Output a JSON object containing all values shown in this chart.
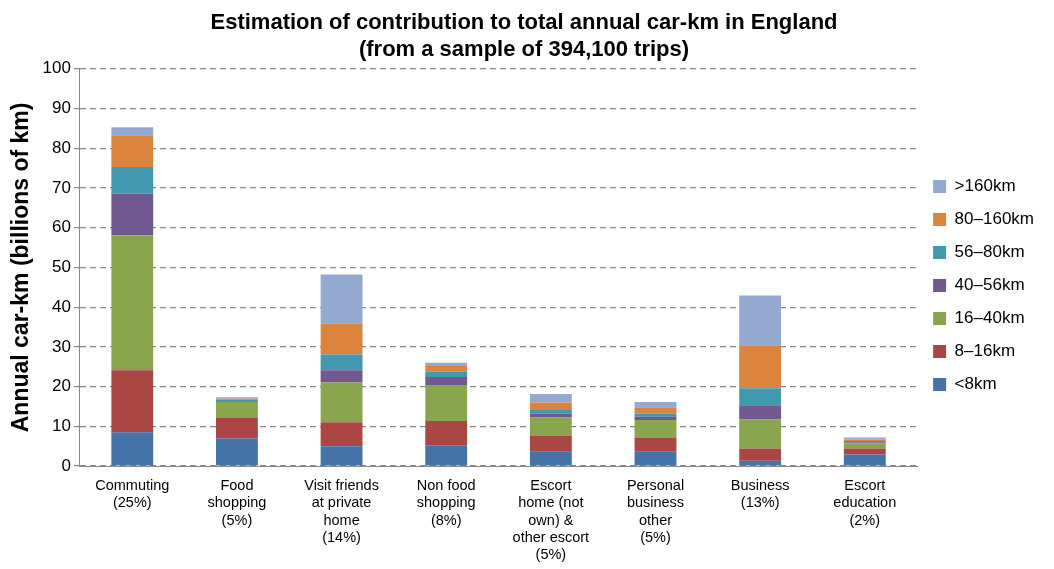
{
  "chart_data": {
    "type": "bar",
    "stacked": true,
    "title": "Estimation of contribution to total annual car-km in England\n(from a sample of 394,100 trips)",
    "ylabel": "Annual car-km (billions of km)",
    "categories": [
      "Commuting\n(25%)",
      "Food\nshopping\n(5%)",
      "Visit friends\nat private\nhome\n(14%)",
      "Non food\nshopping\n(8%)",
      "Escort\nhome (not\nown) &\nother escort\n(5%)",
      "Personal\nbusiness\nother\n(5%)",
      "Business\n(13%)",
      "Escort\neducation\n(2%)"
    ],
    "series": [
      {
        "name": "<8km",
        "color": "#4572a7",
        "values": [
          8.5,
          6.9,
          5.0,
          5.2,
          3.6,
          3.6,
          1.3,
          2.9
        ]
      },
      {
        "name": "8–16km",
        "color": "#aa4643",
        "values": [
          15.6,
          5.2,
          6.0,
          6.1,
          4.1,
          3.6,
          3.1,
          1.5
        ]
      },
      {
        "name": "16–40km",
        "color": "#89a54e",
        "values": [
          34.0,
          4.0,
          10.0,
          9.1,
          4.5,
          4.4,
          7.3,
          1.3
        ]
      },
      {
        "name": "40–56km",
        "color": "#71588f",
        "values": [
          10.5,
          0.2,
          3.1,
          2.0,
          1.0,
          0.8,
          3.6,
          0.3
        ]
      },
      {
        "name": "56–80km",
        "color": "#4198af",
        "values": [
          6.7,
          0.4,
          4.0,
          1.3,
          0.9,
          0.8,
          4.3,
          0.3
        ]
      },
      {
        "name": "80–160km",
        "color": "#db843d",
        "values": [
          8.0,
          0.2,
          7.7,
          1.5,
          1.9,
          1.6,
          10.8,
          0.4
        ]
      },
      {
        "name": ">160km",
        "color": "#93a9cf",
        "values": [
          2.0,
          0.4,
          12.4,
          0.8,
          2.1,
          1.3,
          12.5,
          0.5
        ]
      }
    ],
    "ylim": [
      0,
      100
    ],
    "yticks": [
      0,
      10,
      20,
      30,
      40,
      50,
      60,
      70,
      80,
      90,
      100
    ],
    "grid": "y",
    "legend": "right"
  }
}
